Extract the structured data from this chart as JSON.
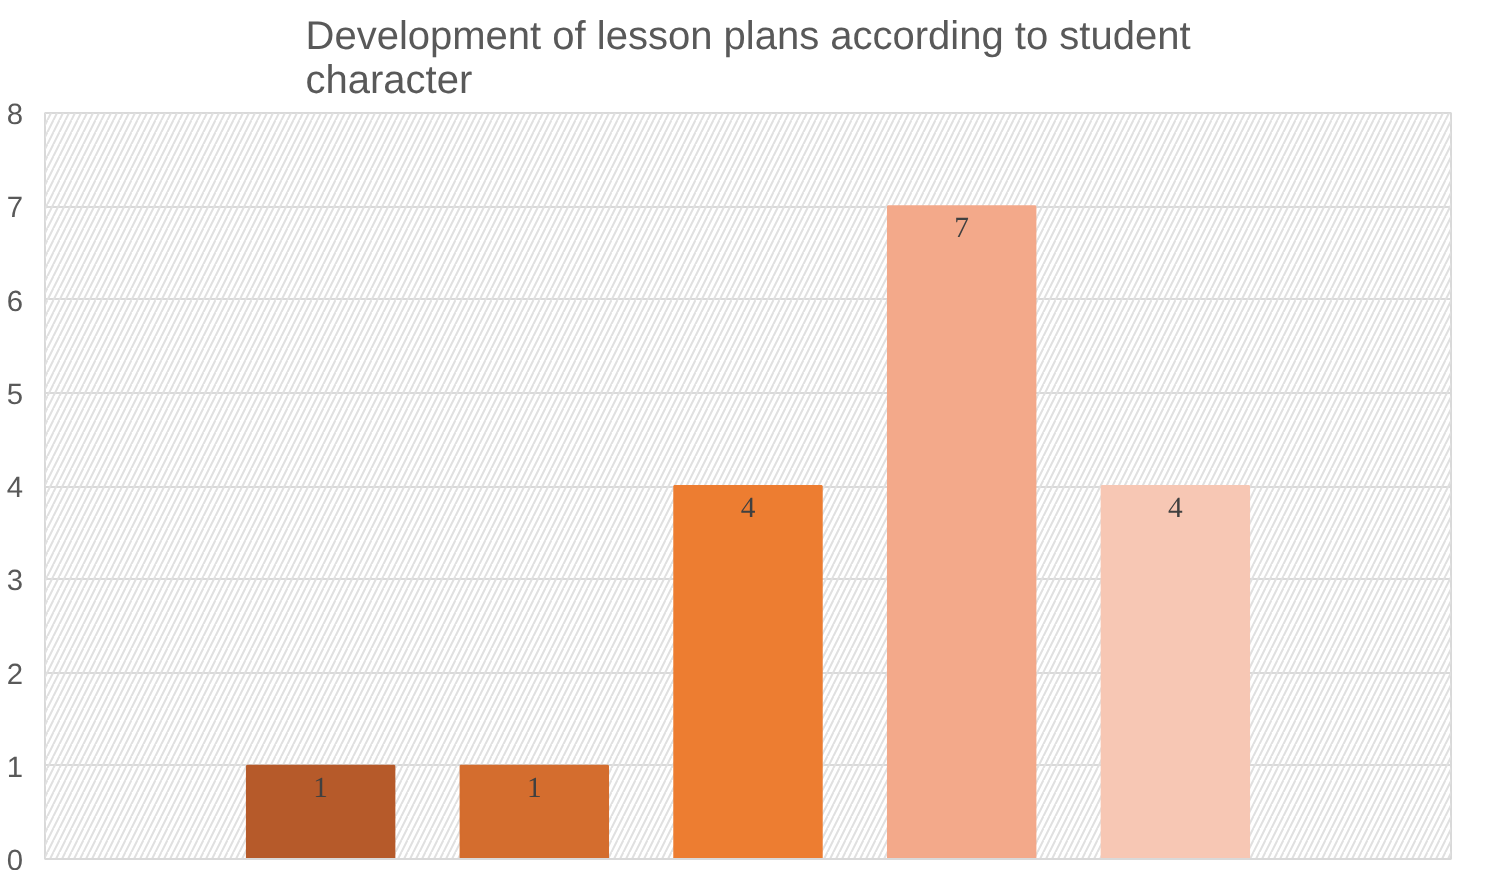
{
  "chart_data": {
    "type": "bar",
    "title": "Development of lesson plans according to student\ncharacter",
    "categories": [
      null,
      null,
      null,
      null,
      null
    ],
    "values": [
      1,
      1,
      4,
      7,
      4
    ],
    "colors": [
      "#b65a2a",
      "#d46d2e",
      "#ed7d31",
      "#f3a98a",
      "#f7c7b4"
    ],
    "ylim": [
      0,
      8
    ],
    "yticks": [
      0,
      1,
      2,
      3,
      4,
      5,
      6,
      7,
      8
    ],
    "grid": "y",
    "data_labels": true
  }
}
